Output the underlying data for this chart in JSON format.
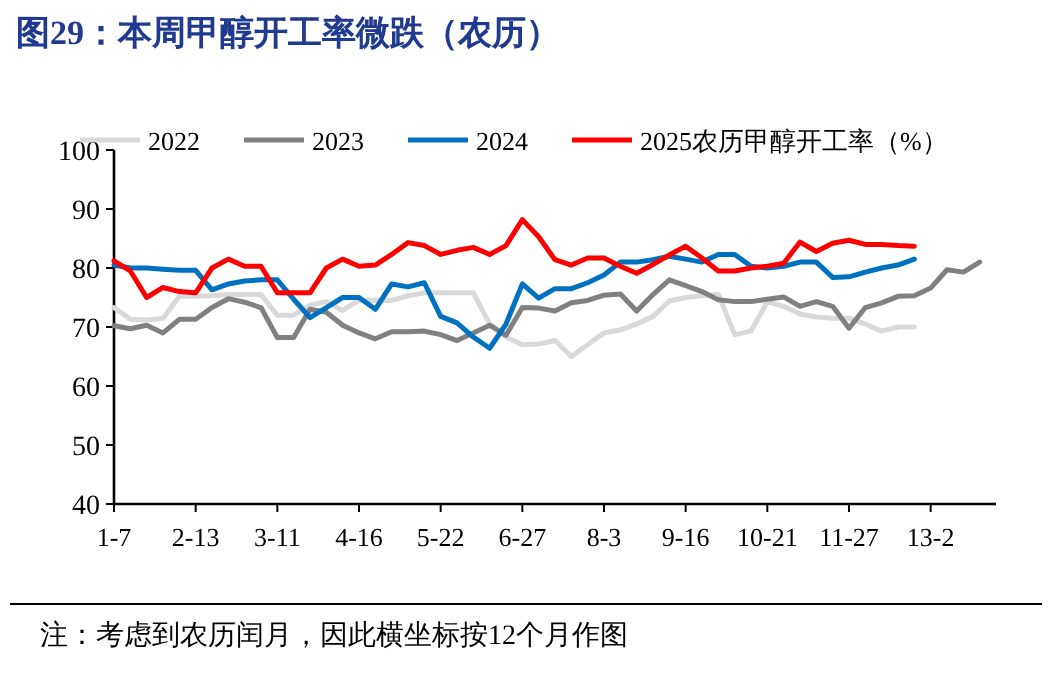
{
  "chart_data": {
    "type": "line",
    "title": "图29：本周甲醇开工率微跌（农历）",
    "categories": [
      "1-7",
      null,
      null,
      null,
      null,
      "2-13",
      null,
      null,
      null,
      null,
      "3-11",
      null,
      null,
      null,
      null,
      "4-16",
      null,
      null,
      null,
      null,
      "5-22",
      null,
      null,
      null,
      null,
      "6-27",
      null,
      null,
      null,
      null,
      "8-3",
      null,
      null,
      null,
      null,
      "9-16",
      null,
      null,
      null,
      null,
      "10-21",
      null,
      null,
      null,
      null,
      "11-27",
      null,
      null,
      null,
      null,
      "13-2",
      null,
      null,
      null
    ],
    "series": [
      {
        "name": "2022",
        "color": "#d9d9d9",
        "values": [
          73.3,
          71.3,
          71.2,
          71.5,
          75.2,
          75.2,
          75.3,
          75.5,
          75.5,
          75.5,
          72,
          72,
          73.7,
          74.3,
          72.8,
          74.5,
          74.5,
          74.5,
          75.3,
          75.8,
          75.8,
          75.8,
          75.8,
          70.5,
          68.3,
          67,
          67.1,
          67.7,
          65,
          67,
          69,
          69.5,
          70.5,
          71.8,
          74.4,
          75,
          75.3,
          75.5,
          68.7,
          69.3,
          74.3,
          73.5,
          72.2,
          71.7,
          71.5,
          71.5,
          70.5,
          69.3,
          70,
          70,
          null,
          null,
          null,
          null
        ]
      },
      {
        "name": "2023",
        "color": "#808080",
        "values": [
          70.2,
          69.7,
          70.3,
          69,
          71.3,
          71.3,
          73.3,
          74.8,
          74.2,
          73.3,
          68.2,
          68.2,
          73,
          72.5,
          70.3,
          69,
          68,
          69.2,
          69.2,
          69.3,
          68.7,
          67.7,
          69,
          70.3,
          68.6,
          73.3,
          73.2,
          72.7,
          74.1,
          74.5,
          75.4,
          75.6,
          72.7,
          75.5,
          78,
          77,
          76,
          74.6,
          74.3,
          74.3,
          74.7,
          75.1,
          73.5,
          74.3,
          73.5,
          69.8,
          73.3,
          74.1,
          75.2,
          75.3,
          76.6,
          79.7,
          79.3,
          81
        ]
      },
      {
        "name": "2024",
        "color": "#0070c0",
        "values": [
          80.5,
          80,
          80,
          79.8,
          79.6,
          79.6,
          76.3,
          77.3,
          77.8,
          78,
          78,
          74.7,
          71.6,
          73.3,
          75,
          75,
          73,
          77.3,
          76.8,
          77.5,
          71.8,
          70.7,
          68.3,
          66.4,
          70.5,
          77.3,
          74.9,
          76.5,
          76.5,
          77.5,
          78.8,
          81,
          81,
          81.4,
          82,
          81.5,
          81,
          82.3,
          82.3,
          80.3,
          80,
          80.3,
          81,
          81,
          78.4,
          78.5,
          79.3,
          80,
          80.5,
          81.5,
          null,
          null,
          null,
          null
        ]
      },
      {
        "name": "2025农历甲醇开工率（%）",
        "color": "#ff0000",
        "values": [
          81.2,
          79.5,
          75,
          76.7,
          76,
          75.8,
          80,
          81.5,
          80.3,
          80.3,
          75.8,
          75.8,
          75.8,
          80,
          81.5,
          80.3,
          80.5,
          82.3,
          84.3,
          83.8,
          82.3,
          83,
          83.5,
          82.3,
          83.8,
          88.2,
          85.3,
          81.4,
          80.5,
          81.7,
          81.7,
          80.3,
          79.1,
          80.6,
          82.2,
          83.7,
          81.7,
          79.5,
          79.5,
          80,
          80.3,
          80.8,
          84.4,
          82.8,
          84.2,
          84.7,
          84,
          84,
          83.8,
          83.7,
          null,
          null,
          null,
          null
        ]
      }
    ],
    "ylim": [
      40,
      100
    ],
    "yticks": [
      40,
      50,
      60,
      70,
      80,
      90,
      100
    ],
    "legend": "top",
    "grid": false,
    "annotations": [
      "注：考虑到农历闰月，因此横坐标按12个月作图"
    ]
  }
}
